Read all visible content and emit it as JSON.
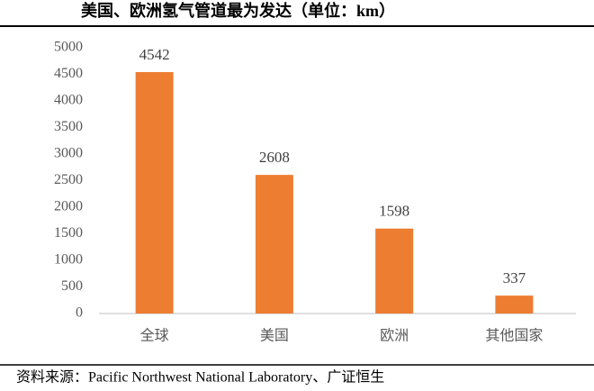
{
  "chart_data": {
    "type": "bar",
    "title": "美国、欧洲氢气管道最为发达（单位：km）",
    "categories": [
      "全球",
      "美国",
      "欧洲",
      "其他国家"
    ],
    "values": [
      4542,
      2608,
      1598,
      337
    ],
    "color": "#ed7d31",
    "ylim": [
      0,
      5000
    ],
    "yticks": [
      0,
      500,
      1000,
      1500,
      2000,
      2500,
      3000,
      3500,
      4000,
      4500,
      5000
    ],
    "source": "资料来源：Pacific Northwest National Laboratory、广证恒生"
  }
}
